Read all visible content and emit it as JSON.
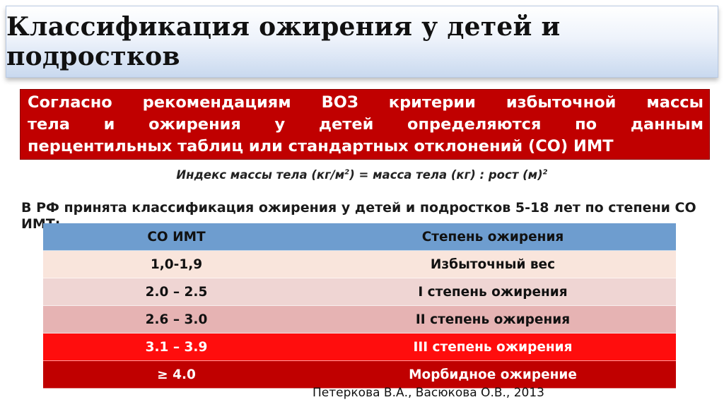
{
  "title": "Классификация ожирения у детей и подростков",
  "highlight_lines": [
    "Согласно рекомендациям ВОЗ критерии избыточной массы",
    "тела и ожирения у детей определяются по данным",
    "перцентильных таблиц или стандартных отклонений (СО) ИМТ"
  ],
  "formula": {
    "part1": "Индекс массы тела (кг/м",
    "sup1": "2",
    "part2": ") = масса тела (кг) : рост (м)",
    "sup2": "2"
  },
  "paragraph": "В РФ принята классификация ожирения у детей и подростков 5-18 лет по степени СО ИМТ:",
  "table": {
    "headers": [
      "СО  ИМТ",
      "Степень ожирения"
    ],
    "rows": [
      [
        "1,0-1,9",
        "Избыточный вес"
      ],
      [
        "2.0 – 2.5",
        "I степень ожирения"
      ],
      [
        "2.6 – 3.0",
        "II степень ожирения"
      ],
      [
        "3.1 – 3.9",
        "III степень ожирения"
      ],
      [
        "≥ 4.0",
        "Морбидное ожирение"
      ]
    ],
    "row_colors": [
      "#f9e5dc",
      "#efd5d3",
      "#e6b3b3",
      "#ff0d0d",
      "#c00000"
    ],
    "header_color": "#6e9dcf"
  },
  "credit": "Петеркова В.А., Васюкова О.В., 2013",
  "colors": {
    "highlight_bg": "#c00000",
    "title_gradient_end": "#c9d9ef"
  }
}
